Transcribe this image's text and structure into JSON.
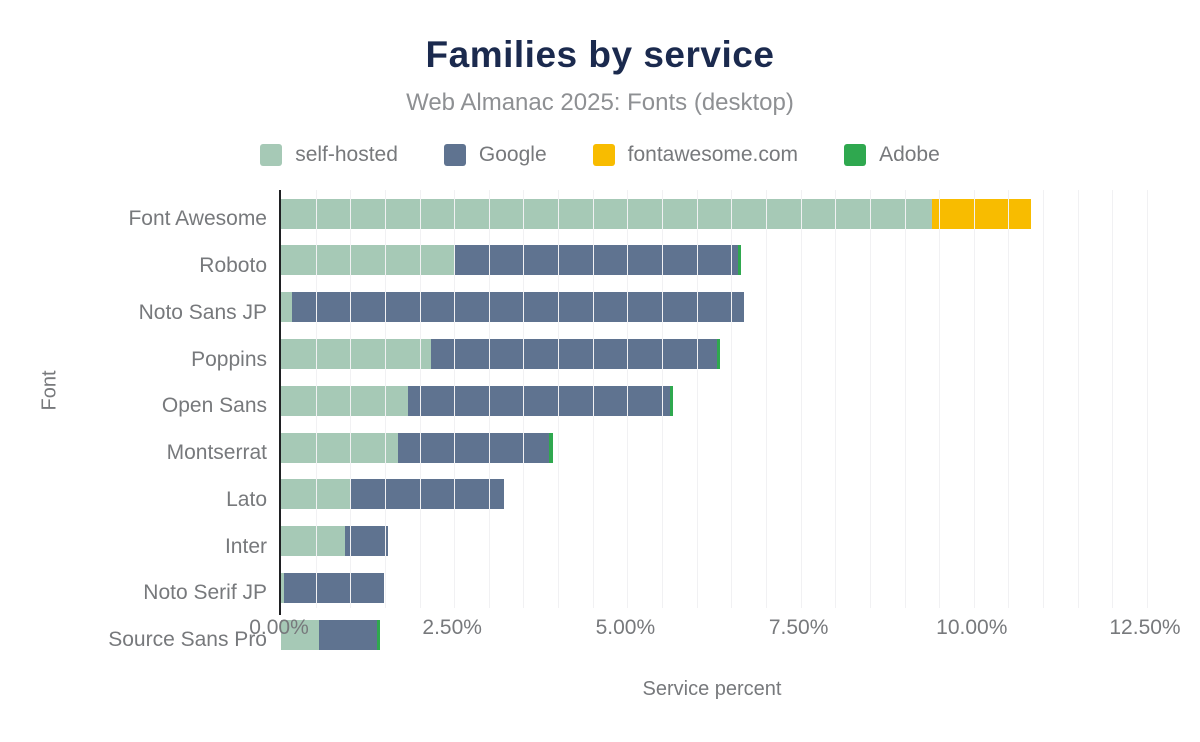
{
  "chart": {
    "title": "Families by service",
    "subtitle": "Web Almanac 2025: Fonts (desktop)",
    "xlabel": "Service percent",
    "ylabel": "Font"
  },
  "chart_data": {
    "type": "bar",
    "orientation": "horizontal",
    "stacked": true,
    "title": "Families by service",
    "subtitle": "Web Almanac 2025: Fonts (desktop)",
    "xlabel": "Service percent",
    "ylabel": "Font",
    "categories": [
      "Font Awesome",
      "Roboto",
      "Noto Sans JP",
      "Poppins",
      "Open Sans",
      "Montserrat",
      "Lato",
      "Inter",
      "Noto Serif JP",
      "Source Sans Pro"
    ],
    "series": [
      {
        "name": "self-hosted",
        "color": "#a6c9b6",
        "values": [
          9.39,
          2.49,
          0.16,
          2.16,
          1.84,
          1.69,
          1.01,
          0.93,
          0.05,
          0.55
        ]
      },
      {
        "name": "Google",
        "color": "#5f7390",
        "values": [
          0,
          4.1,
          6.52,
          4.13,
          3.78,
          2.18,
          2.21,
          0.61,
          1.43,
          0.84
        ]
      },
      {
        "name": "fontawesome.com",
        "color": "#f8bc00",
        "values": [
          1.44,
          0,
          0,
          0,
          0,
          0,
          0,
          0,
          0,
          0
        ]
      },
      {
        "name": "Adobe",
        "color": "#2fa84f",
        "values": [
          0,
          0.05,
          0,
          0.05,
          0.04,
          0.05,
          0,
          0,
          0,
          0.04
        ]
      }
    ],
    "x_ticks": [
      "0.00%",
      "2.50%",
      "5.00%",
      "7.50%",
      "10.00%",
      "12.50%"
    ],
    "x_tick_values": [
      0,
      2.5,
      5,
      7.5,
      10,
      12.5
    ],
    "xlim": [
      0,
      12.5
    ],
    "grid_step": 0.5,
    "grid": true,
    "legend_position": "top"
  },
  "colors": {
    "title": "#1b2a4e",
    "subtitle": "#8e9093",
    "axis_text": "#77797c",
    "axis_line": "#1f2023",
    "grid": "#f1f1f3",
    "background": "#ffffff"
  }
}
